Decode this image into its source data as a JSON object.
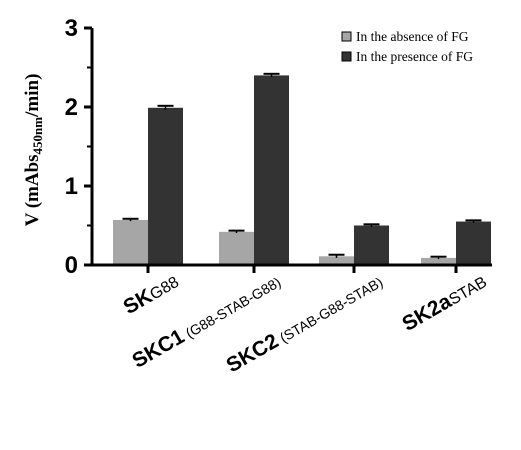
{
  "chart_data": {
    "type": "bar",
    "title": "",
    "xlabel": "",
    "ylabel": {
      "prefix": "V (mAbs",
      "subscript": "450nm",
      "suffix": "/min)"
    },
    "ylim": [
      0,
      3
    ],
    "yticks": [
      "0",
      "1",
      "2",
      "3"
    ],
    "grid": false,
    "legend_position": "top-right",
    "categories": [
      {
        "main": "SK",
        "sub": "G88"
      },
      {
        "main": "SKC1",
        "sub": " (G88-STAB-G88)"
      },
      {
        "main": "SKC2",
        "sub": " (STAB-G88-STAB)"
      },
      {
        "main": "SK2a",
        "sub": "STAB"
      }
    ],
    "series": [
      {
        "name": "In the absence of FG",
        "color": "#a6a6a6",
        "values": [
          0.57,
          0.42,
          0.11,
          0.09
        ],
        "errors": [
          0.015,
          0.015,
          0.02,
          0.015
        ]
      },
      {
        "name": "In the presence of FG",
        "color": "#333333",
        "values": [
          1.99,
          2.4,
          0.5,
          0.55
        ],
        "errors": [
          0.025,
          0.02,
          0.015,
          0.015
        ]
      }
    ]
  }
}
